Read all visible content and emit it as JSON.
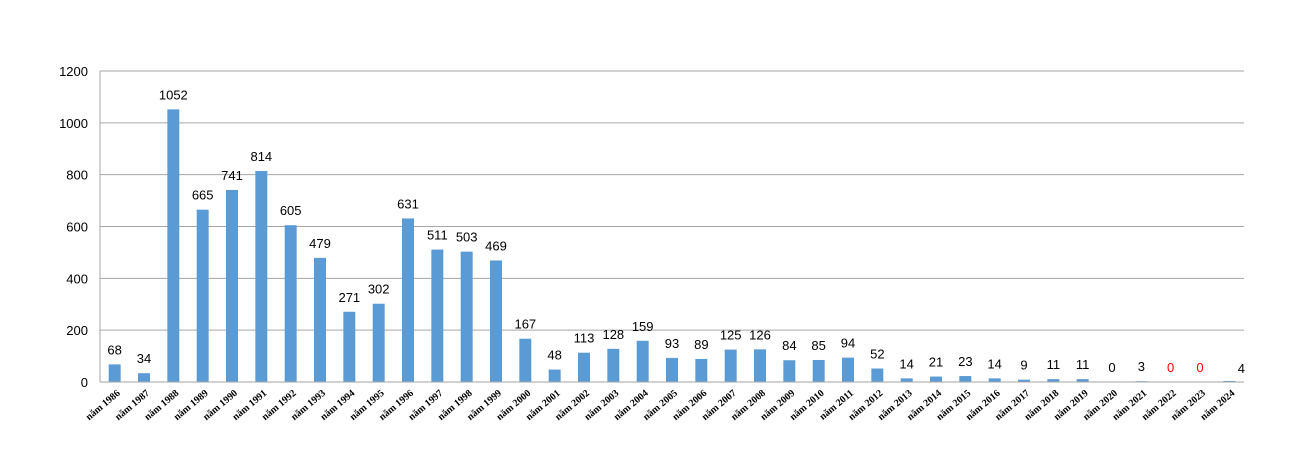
{
  "chart_data": {
    "type": "bar",
    "title": "",
    "xlabel": "",
    "ylabel": "",
    "ylim": [
      0,
      1200
    ],
    "yticks": [
      0,
      200,
      400,
      600,
      800,
      1000,
      1200
    ],
    "grid": true,
    "legend": "none",
    "categories": [
      "năm 1986",
      "năm 1987",
      "năm 1988",
      "năm 1989",
      "năm 1990",
      "năm 1991",
      "năm 1992",
      "năm 1993",
      "năm 1994",
      "năm 1995",
      "năm 1996",
      "năm 1997",
      "năm 1998",
      "năm 1999",
      "năm 2000",
      "năm 2001",
      "năm 2002",
      "năm 2003",
      "năm 2004",
      "năm 2005",
      "năm 2006",
      "năm 2007",
      "năm 2008",
      "năm 2009",
      "năm 2010",
      "năm 2011",
      "năm 2012",
      "năm 2013",
      "năm 2014",
      "năm 2015",
      "năm 2016",
      "năm 2017",
      "năm 2018",
      "năm 2019",
      "năm 2020",
      "năm 2021",
      "năm 2022",
      "năm 2023",
      "năm 2024"
    ],
    "values": [
      68,
      34,
      1052,
      665,
      741,
      814,
      605,
      479,
      271,
      302,
      631,
      511,
      503,
      469,
      167,
      48,
      113,
      128,
      159,
      93,
      89,
      125,
      126,
      84,
      85,
      94,
      52,
      14,
      21,
      23,
      14,
      9,
      11,
      11,
      0,
      3,
      0,
      0,
      4
    ],
    "label_colors": {
      "normal": "#000000",
      "highlight": "#ff0000"
    },
    "highlight_categories": [
      "năm 2022",
      "năm 2023"
    ],
    "bar_color": "#5b9bd5",
    "grid_color": "#a6a6a6"
  }
}
